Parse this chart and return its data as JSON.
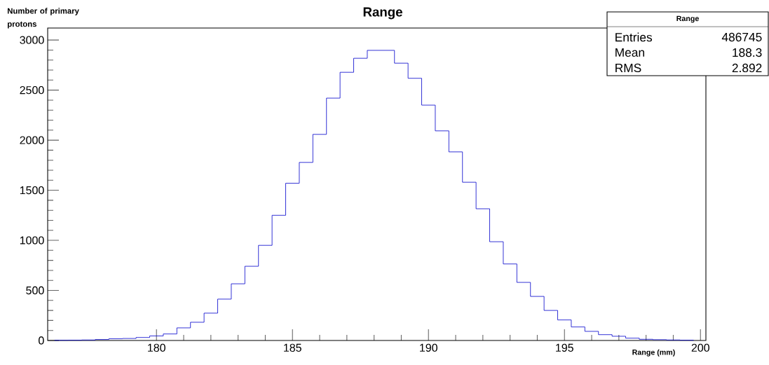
{
  "chart_data": {
    "type": "histogram",
    "title": "Range",
    "xlabel": "Range (mm)",
    "ylabel": "Number of primary protons",
    "bins": [
      176.25,
      176.75,
      177.25,
      177.75,
      178.25,
      178.75,
      179.25,
      179.75,
      180.25,
      180.75,
      181.25,
      181.75,
      182.25,
      182.75,
      183.25,
      183.75,
      184.25,
      184.75,
      185.25,
      185.75,
      186.25,
      186.75,
      187.25,
      187.75,
      188.25,
      188.75,
      189.25,
      189.75,
      190.25,
      190.75,
      191.25,
      191.75,
      192.25,
      192.75,
      193.25,
      193.75,
      194.25,
      194.75,
      195.25,
      195.75,
      196.25,
      196.75,
      197.25,
      197.75,
      198.25,
      198.75,
      199.25,
      199.75
    ],
    "values": [
      2,
      3,
      5,
      10,
      17,
      20,
      30,
      45,
      65,
      126,
      182,
      273,
      413,
      566,
      741,
      950,
      1250,
      1570,
      1778,
      2058,
      2420,
      2678,
      2818,
      2897,
      2897,
      2769,
      2618,
      2350,
      2093,
      1883,
      1580,
      1315,
      986,
      764,
      580,
      440,
      300,
      205,
      135,
      91,
      58,
      42,
      23,
      12,
      8,
      5,
      3
    ],
    "color": "#0000cc",
    "xlim": [
      176,
      200.2
    ],
    "ylim": [
      0,
      3120
    ],
    "xticks": [
      180,
      185,
      190,
      195,
      200
    ],
    "yticks": [
      0,
      500,
      1000,
      1500,
      2000,
      2500,
      3000
    ],
    "grid": false,
    "annotations": [
      "Range",
      "Entries",
      "486745",
      "Mean",
      "188.3",
      "RMS",
      "2.892"
    ]
  }
}
